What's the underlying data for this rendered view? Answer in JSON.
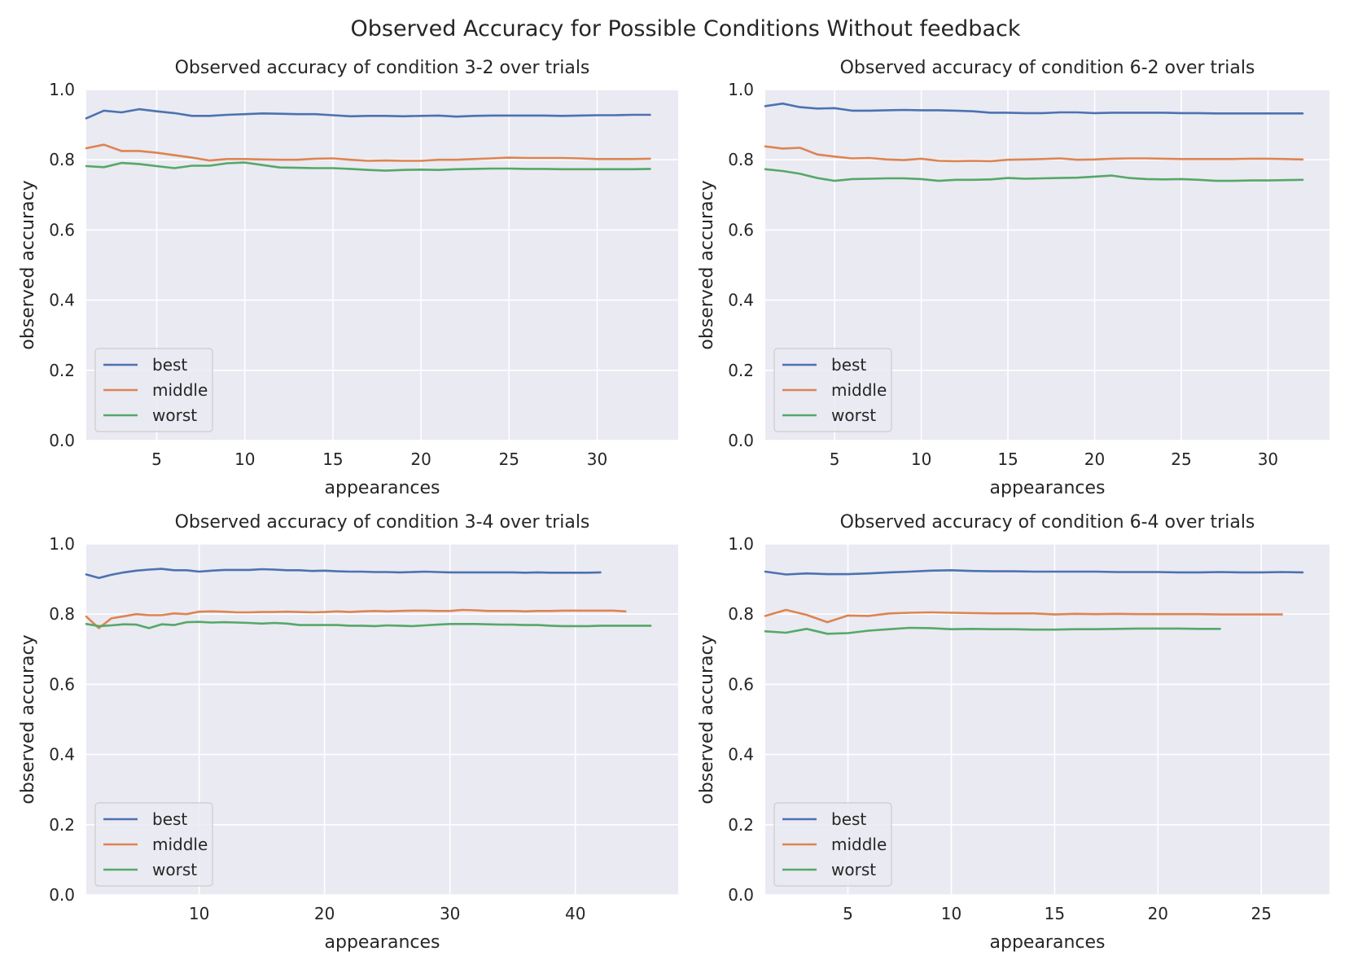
{
  "figure": {
    "title": "Observed Accuracy for Possible Conditions Without feedback",
    "colors": {
      "background": "#EAEAF2",
      "grid": "#FFFFFF",
      "best": "#4C72B0",
      "middle": "#DD8452",
      "worst": "#55A868"
    }
  },
  "chart_data": [
    {
      "type": "line",
      "title": "Observed accuracy of condition 3-2 over trials",
      "xlabel": "appearances",
      "ylabel": "observed accuracy",
      "xlim": [
        1,
        34.6
      ],
      "ylim": [
        0,
        1
      ],
      "xticks": [
        5,
        10,
        15,
        20,
        25,
        30
      ],
      "yticks": [
        0.0,
        0.2,
        0.4,
        0.6,
        0.8,
        1.0
      ],
      "grid": true,
      "legend": "lower-left",
      "series": [
        {
          "name": "best",
          "color": "#4C72B0",
          "x": [
            1,
            2,
            3,
            4,
            5,
            6,
            7,
            8,
            9,
            10,
            11,
            12,
            13,
            14,
            15,
            16,
            17,
            18,
            19,
            20,
            21,
            22,
            23,
            24,
            25,
            26,
            27,
            28,
            29,
            30,
            31,
            32,
            33
          ],
          "values": [
            0.918,
            0.94,
            0.935,
            0.944,
            0.938,
            0.933,
            0.925,
            0.925,
            0.928,
            0.93,
            0.932,
            0.931,
            0.93,
            0.93,
            0.927,
            0.924,
            0.925,
            0.925,
            0.924,
            0.925,
            0.926,
            0.923,
            0.925,
            0.926,
            0.926,
            0.926,
            0.926,
            0.925,
            0.926,
            0.927,
            0.927,
            0.928,
            0.928
          ]
        },
        {
          "name": "middle",
          "color": "#DD8452",
          "x": [
            1,
            2,
            3,
            4,
            5,
            6,
            7,
            8,
            9,
            10,
            11,
            12,
            13,
            14,
            15,
            16,
            17,
            18,
            19,
            20,
            21,
            22,
            23,
            24,
            25,
            26,
            27,
            28,
            29,
            30,
            31,
            32,
            33
          ],
          "values": [
            0.833,
            0.843,
            0.825,
            0.825,
            0.82,
            0.813,
            0.806,
            0.798,
            0.802,
            0.802,
            0.801,
            0.8,
            0.8,
            0.803,
            0.804,
            0.8,
            0.797,
            0.798,
            0.797,
            0.797,
            0.8,
            0.8,
            0.802,
            0.804,
            0.806,
            0.805,
            0.805,
            0.805,
            0.804,
            0.802,
            0.802,
            0.802,
            0.803
          ]
        },
        {
          "name": "worst",
          "color": "#55A868",
          "x": [
            1,
            2,
            3,
            4,
            5,
            6,
            7,
            8,
            9,
            10,
            11,
            12,
            13,
            14,
            15,
            16,
            17,
            18,
            19,
            20,
            21,
            22,
            23,
            24,
            25,
            26,
            27,
            28,
            29,
            30,
            31,
            32,
            33
          ],
          "values": [
            0.782,
            0.779,
            0.791,
            0.788,
            0.782,
            0.776,
            0.783,
            0.783,
            0.79,
            0.792,
            0.785,
            0.778,
            0.777,
            0.776,
            0.776,
            0.774,
            0.771,
            0.769,
            0.771,
            0.772,
            0.771,
            0.773,
            0.774,
            0.775,
            0.775,
            0.774,
            0.774,
            0.773,
            0.773,
            0.773,
            0.773,
            0.773,
            0.774
          ]
        }
      ]
    },
    {
      "type": "line",
      "title": "Observed accuracy of condition 6-2 over trials",
      "xlabel": "appearances",
      "ylabel": "observed accuracy",
      "xlim": [
        1,
        33.55
      ],
      "ylim": [
        0,
        1
      ],
      "xticks": [
        5,
        10,
        15,
        20,
        25,
        30
      ],
      "yticks": [
        0.0,
        0.2,
        0.4,
        0.6,
        0.8,
        1.0
      ],
      "grid": true,
      "legend": "lower-left",
      "series": [
        {
          "name": "best",
          "color": "#4C72B0",
          "x": [
            1,
            2,
            3,
            4,
            5,
            6,
            7,
            8,
            9,
            10,
            11,
            12,
            13,
            14,
            15,
            16,
            17,
            18,
            19,
            20,
            21,
            22,
            23,
            24,
            25,
            26,
            27,
            28,
            29,
            30,
            31,
            32
          ],
          "values": [
            0.953,
            0.96,
            0.95,
            0.946,
            0.947,
            0.94,
            0.94,
            0.941,
            0.942,
            0.941,
            0.941,
            0.94,
            0.938,
            0.934,
            0.934,
            0.933,
            0.933,
            0.935,
            0.935,
            0.933,
            0.934,
            0.934,
            0.934,
            0.934,
            0.933,
            0.933,
            0.932,
            0.932,
            0.932,
            0.932,
            0.932,
            0.932
          ]
        },
        {
          "name": "middle",
          "color": "#DD8452",
          "x": [
            1,
            2,
            3,
            4,
            5,
            6,
            7,
            8,
            9,
            10,
            11,
            12,
            13,
            14,
            15,
            16,
            17,
            18,
            19,
            20,
            21,
            22,
            23,
            24,
            25,
            26,
            27,
            28,
            29,
            30,
            31,
            32
          ],
          "values": [
            0.838,
            0.832,
            0.834,
            0.815,
            0.809,
            0.804,
            0.805,
            0.801,
            0.799,
            0.803,
            0.797,
            0.796,
            0.797,
            0.796,
            0.8,
            0.801,
            0.802,
            0.804,
            0.8,
            0.801,
            0.803,
            0.804,
            0.804,
            0.803,
            0.802,
            0.802,
            0.802,
            0.802,
            0.803,
            0.803,
            0.802,
            0.801
          ]
        },
        {
          "name": "worst",
          "color": "#55A868",
          "x": [
            1,
            2,
            3,
            4,
            5,
            6,
            7,
            8,
            9,
            10,
            11,
            12,
            13,
            14,
            15,
            16,
            17,
            18,
            19,
            20,
            21,
            22,
            23,
            24,
            25,
            26,
            27,
            28,
            29,
            30,
            31,
            32
          ],
          "values": [
            0.773,
            0.768,
            0.76,
            0.748,
            0.74,
            0.745,
            0.746,
            0.747,
            0.747,
            0.745,
            0.74,
            0.743,
            0.743,
            0.744,
            0.748,
            0.746,
            0.747,
            0.748,
            0.749,
            0.752,
            0.755,
            0.748,
            0.745,
            0.744,
            0.745,
            0.743,
            0.74,
            0.74,
            0.741,
            0.741,
            0.742,
            0.743
          ]
        }
      ]
    },
    {
      "type": "line",
      "title": "Observed accuracy of condition 3-4 over trials",
      "xlabel": "appearances",
      "ylabel": "observed accuracy",
      "xlim": [
        1,
        48.2
      ],
      "ylim": [
        0,
        1
      ],
      "xticks": [
        10,
        20,
        30,
        40
      ],
      "yticks": [
        0.0,
        0.2,
        0.4,
        0.6,
        0.8,
        1.0
      ],
      "grid": true,
      "legend": "lower-left",
      "series": [
        {
          "name": "best",
          "color": "#4C72B0",
          "x": [
            1,
            2,
            3,
            4,
            5,
            6,
            7,
            8,
            9,
            10,
            11,
            12,
            13,
            14,
            15,
            16,
            17,
            18,
            19,
            20,
            21,
            22,
            23,
            24,
            25,
            26,
            27,
            28,
            29,
            30,
            31,
            32,
            33,
            34,
            35,
            36,
            37,
            38,
            39,
            40,
            41,
            42
          ],
          "values": [
            0.913,
            0.903,
            0.912,
            0.919,
            0.924,
            0.927,
            0.929,
            0.925,
            0.925,
            0.921,
            0.924,
            0.926,
            0.926,
            0.926,
            0.928,
            0.927,
            0.925,
            0.925,
            0.923,
            0.924,
            0.922,
            0.921,
            0.921,
            0.92,
            0.92,
            0.919,
            0.92,
            0.921,
            0.92,
            0.919,
            0.919,
            0.919,
            0.919,
            0.919,
            0.919,
            0.918,
            0.919,
            0.918,
            0.918,
            0.918,
            0.918,
            0.919
          ]
        },
        {
          "name": "middle",
          "color": "#DD8452",
          "x": [
            1,
            2,
            3,
            4,
            5,
            6,
            7,
            8,
            9,
            10,
            11,
            12,
            13,
            14,
            15,
            16,
            17,
            18,
            19,
            20,
            21,
            22,
            23,
            24,
            25,
            26,
            27,
            28,
            29,
            30,
            31,
            32,
            33,
            34,
            35,
            36,
            37,
            38,
            39,
            40,
            41,
            42,
            43,
            44
          ],
          "values": [
            0.793,
            0.76,
            0.788,
            0.794,
            0.8,
            0.797,
            0.797,
            0.802,
            0.8,
            0.807,
            0.808,
            0.807,
            0.805,
            0.805,
            0.806,
            0.806,
            0.807,
            0.806,
            0.805,
            0.806,
            0.808,
            0.806,
            0.808,
            0.809,
            0.808,
            0.809,
            0.81,
            0.81,
            0.809,
            0.809,
            0.812,
            0.811,
            0.809,
            0.809,
            0.809,
            0.808,
            0.809,
            0.809,
            0.81,
            0.81,
            0.81,
            0.81,
            0.81,
            0.808
          ]
        },
        {
          "name": "worst",
          "color": "#55A868",
          "x": [
            1,
            2,
            3,
            4,
            5,
            6,
            7,
            8,
            9,
            10,
            11,
            12,
            13,
            14,
            15,
            16,
            17,
            18,
            19,
            20,
            21,
            22,
            23,
            24,
            25,
            26,
            27,
            28,
            29,
            30,
            31,
            32,
            33,
            34,
            35,
            36,
            37,
            38,
            39,
            40,
            41,
            42,
            43,
            44,
            45,
            46
          ],
          "values": [
            0.772,
            0.766,
            0.768,
            0.771,
            0.77,
            0.76,
            0.771,
            0.769,
            0.777,
            0.778,
            0.776,
            0.777,
            0.776,
            0.775,
            0.773,
            0.775,
            0.773,
            0.769,
            0.769,
            0.769,
            0.769,
            0.767,
            0.767,
            0.766,
            0.768,
            0.767,
            0.766,
            0.768,
            0.77,
            0.772,
            0.772,
            0.772,
            0.771,
            0.77,
            0.77,
            0.769,
            0.769,
            0.767,
            0.766,
            0.766,
            0.766,
            0.767,
            0.767,
            0.767,
            0.767,
            0.767
          ]
        }
      ]
    },
    {
      "type": "line",
      "title": "Observed accuracy of condition 6-4 over trials",
      "xlabel": "appearances",
      "ylabel": "observed accuracy",
      "xlim": [
        1,
        28.3
      ],
      "ylim": [
        0,
        1
      ],
      "xticks": [
        5,
        10,
        15,
        20,
        25
      ],
      "yticks": [
        0.0,
        0.2,
        0.4,
        0.6,
        0.8,
        1.0
      ],
      "grid": true,
      "legend": "lower-left",
      "series": [
        {
          "name": "best",
          "color": "#4C72B0",
          "x": [
            1,
            2,
            3,
            4,
            5,
            6,
            7,
            8,
            9,
            10,
            11,
            12,
            13,
            14,
            15,
            16,
            17,
            18,
            19,
            20,
            21,
            22,
            23,
            24,
            25,
            26,
            27
          ],
          "values": [
            0.921,
            0.913,
            0.916,
            0.914,
            0.914,
            0.916,
            0.919,
            0.921,
            0.924,
            0.925,
            0.923,
            0.922,
            0.922,
            0.921,
            0.921,
            0.921,
            0.921,
            0.92,
            0.92,
            0.92,
            0.919,
            0.919,
            0.92,
            0.919,
            0.919,
            0.92,
            0.919
          ]
        },
        {
          "name": "middle",
          "color": "#DD8452",
          "x": [
            1,
            2,
            3,
            4,
            5,
            6,
            7,
            8,
            9,
            10,
            11,
            12,
            13,
            14,
            15,
            16,
            17,
            18,
            19,
            20,
            21,
            22,
            23,
            24,
            25,
            26
          ],
          "values": [
            0.795,
            0.812,
            0.798,
            0.777,
            0.796,
            0.795,
            0.802,
            0.804,
            0.805,
            0.804,
            0.803,
            0.802,
            0.802,
            0.802,
            0.799,
            0.801,
            0.8,
            0.801,
            0.8,
            0.8,
            0.8,
            0.8,
            0.799,
            0.799,
            0.799,
            0.799
          ]
        },
        {
          "name": "worst",
          "color": "#55A868",
          "x": [
            1,
            2,
            3,
            4,
            5,
            6,
            7,
            8,
            9,
            10,
            11,
            12,
            13,
            14,
            15,
            16,
            17,
            18,
            19,
            20,
            21,
            22,
            23
          ],
          "values": [
            0.751,
            0.747,
            0.758,
            0.744,
            0.746,
            0.753,
            0.757,
            0.761,
            0.76,
            0.757,
            0.758,
            0.757,
            0.757,
            0.756,
            0.756,
            0.757,
            0.757,
            0.758,
            0.759,
            0.759,
            0.759,
            0.758,
            0.758
          ]
        }
      ]
    }
  ]
}
